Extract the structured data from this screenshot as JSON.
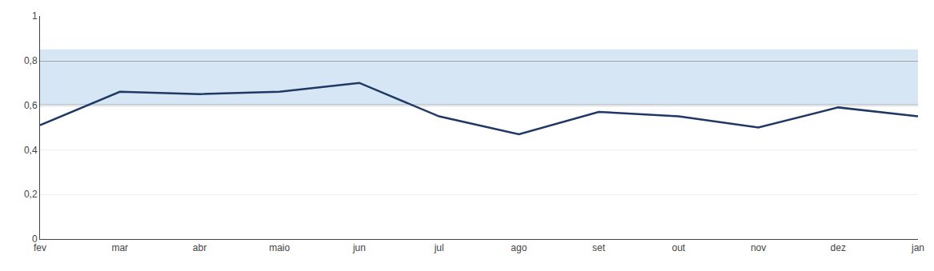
{
  "chart_data": {
    "type": "line",
    "categories": [
      "fev",
      "mar",
      "abr",
      "maio",
      "jun",
      "jul",
      "ago",
      "set",
      "out",
      "nov",
      "dez",
      "jan"
    ],
    "values": [
      0.51,
      0.66,
      0.65,
      0.66,
      0.7,
      0.55,
      0.47,
      0.57,
      0.55,
      0.5,
      0.59,
      0.55
    ],
    "color": "#1F3864",
    "ylim": [
      0,
      1
    ],
    "yticks": [
      0,
      {
        "value": 0.2,
        "label": "0,2"
      },
      {
        "value": 0.4,
        "label": "0,4"
      },
      {
        "value": 0.6,
        "label": "0,6"
      },
      {
        "value": 0.8,
        "label": "0,8"
      },
      1
    ],
    "grid": true,
    "band": {
      "low": 0.6,
      "high": 0.85,
      "color": "#C5DCF0"
    },
    "reference_lines": {
      "values": [
        0.6,
        0.8
      ],
      "color": "#5A5A5A"
    }
  }
}
